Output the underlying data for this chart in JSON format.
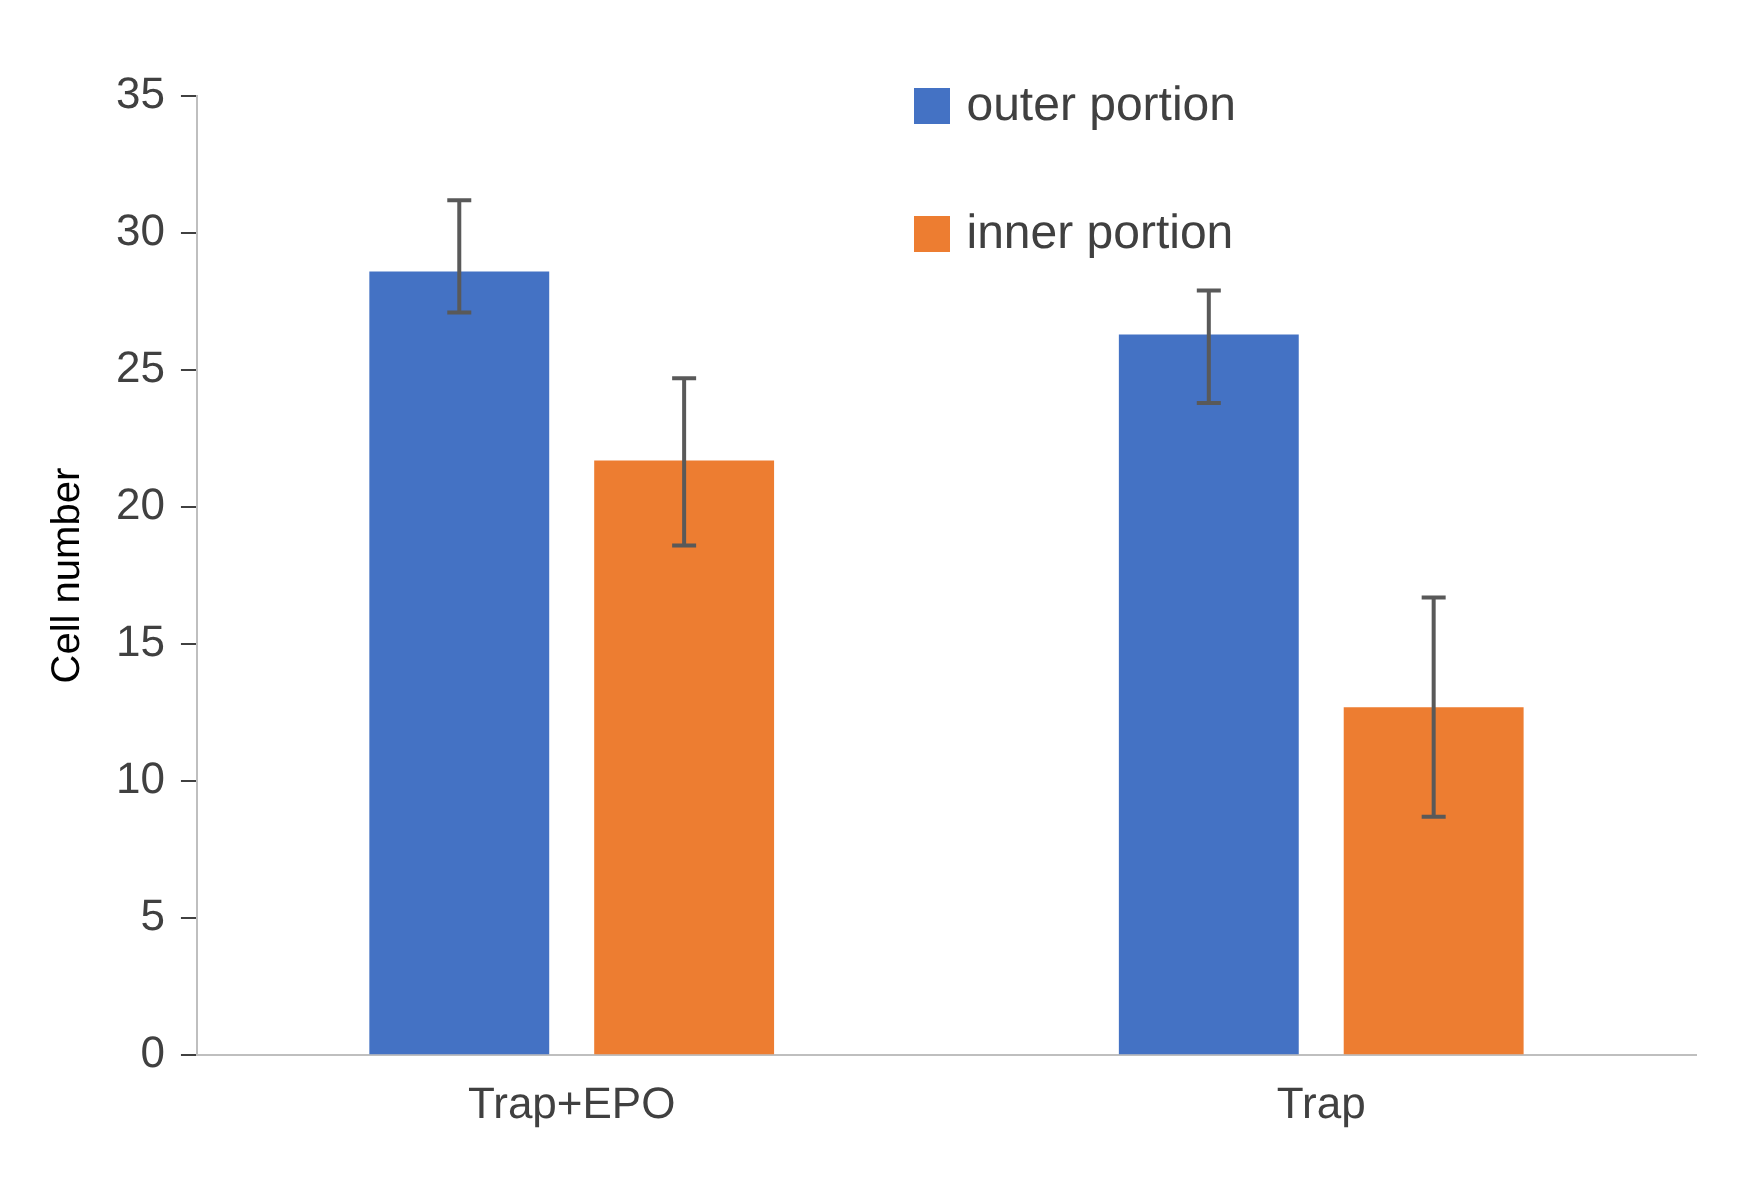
{
  "chart_data": {
    "type": "bar",
    "ylabel": "Cell number",
    "categories": [
      "Trap+EPO",
      "Trap"
    ],
    "series": [
      {
        "name": "outer portion",
        "color": "#4472c4",
        "values": [
          28.6,
          26.3
        ],
        "errors": [
          [
            27.1,
            31.2
          ],
          [
            23.8,
            27.9
          ]
        ]
      },
      {
        "name": "inner portion",
        "color": "#ed7d31",
        "values": [
          21.7,
          12.7
        ],
        "errors": [
          [
            18.6,
            24.7
          ],
          [
            8.7,
            16.7
          ]
        ]
      }
    ],
    "ylim": [
      0,
      35
    ],
    "yticks": [
      0,
      5,
      10,
      15,
      20,
      25,
      30,
      35
    ],
    "grid": false,
    "legend": "top right"
  }
}
